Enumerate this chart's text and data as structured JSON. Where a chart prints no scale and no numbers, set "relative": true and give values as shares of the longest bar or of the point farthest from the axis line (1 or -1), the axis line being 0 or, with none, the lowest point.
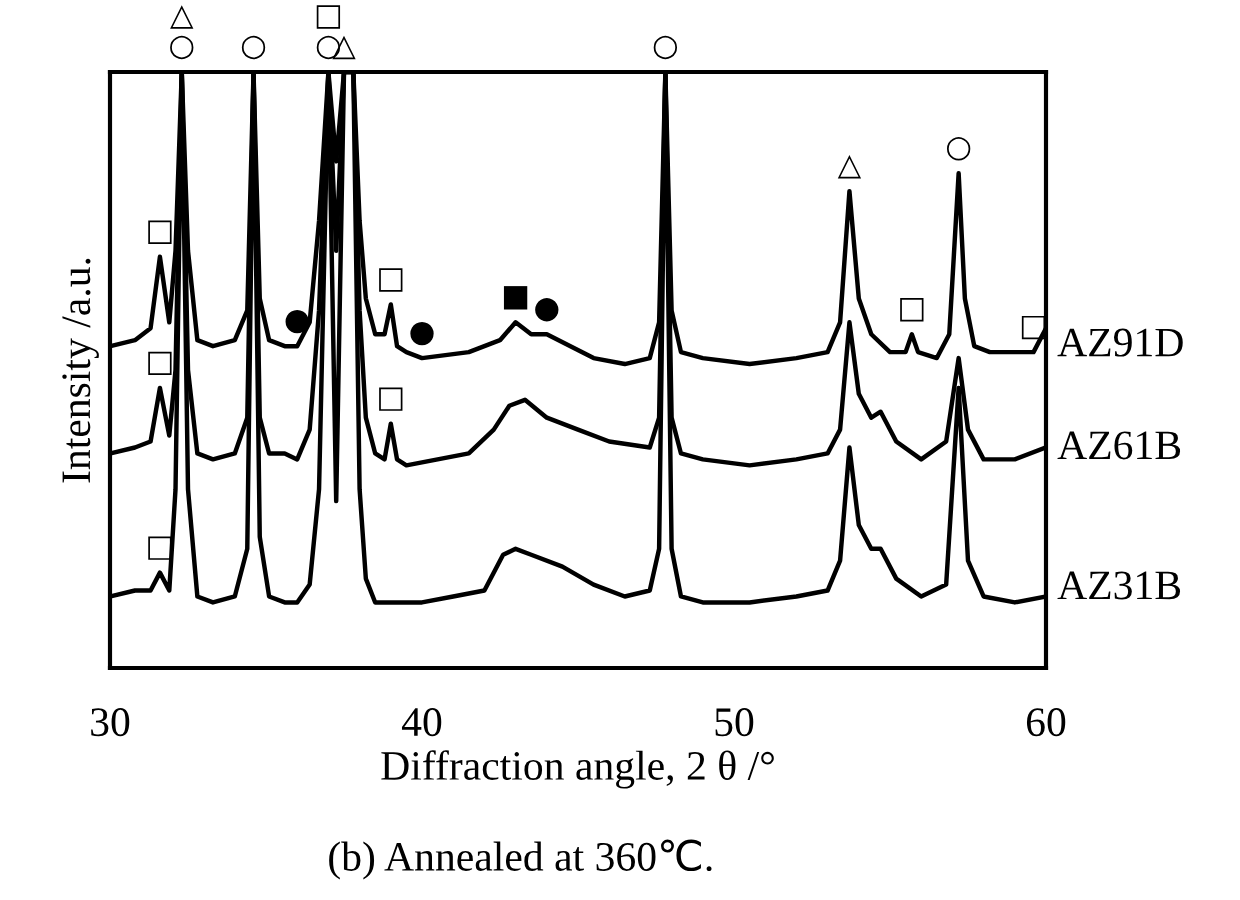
{
  "chart_data": {
    "type": "line",
    "relative": true,
    "xlabel": "Diffraction angle, 2 θ /°",
    "ylabel": "Intensity /a.u.",
    "xlim": [
      30,
      60
    ],
    "xticks": [
      30,
      40,
      50,
      60
    ],
    "grid": false,
    "legend": false,
    "marker": "none",
    "line_style": "solid",
    "series": [
      {
        "name": "AZ91D",
        "color": "#000000",
        "x": [
          30,
          30.8,
          31.3,
          31.6,
          31.9,
          32.1,
          32.3,
          32.5,
          32.8,
          33.3,
          34.0,
          34.4,
          34.6,
          34.8,
          35.1,
          35.6,
          36.0,
          36.4,
          36.7,
          37.0,
          37.25,
          37.5,
          37.8,
          38.0,
          38.2,
          38.5,
          38.8,
          39.0,
          39.2,
          39.5,
          40.0,
          41.5,
          42.5,
          43.0,
          43.5,
          44.0,
          45.5,
          46.5,
          47.3,
          47.6,
          47.8,
          48.0,
          48.3,
          49.0,
          50.5,
          52.0,
          53.0,
          53.4,
          53.7,
          54.0,
          54.4,
          55.0,
          55.5,
          55.7,
          55.9,
          56.5,
          56.9,
          57.2,
          57.4,
          57.7,
          58.2,
          59.0,
          59.6,
          60
        ],
        "values": [
          0.54,
          0.55,
          0.57,
          0.69,
          0.58,
          0.7,
          1,
          0.7,
          0.55,
          0.54,
          0.55,
          0.6,
          1,
          0.62,
          0.55,
          0.54,
          0.54,
          0.58,
          0.75,
          1,
          0.85,
          1,
          1,
          0.75,
          0.62,
          0.56,
          0.56,
          0.61,
          0.54,
          0.53,
          0.52,
          0.53,
          0.55,
          0.58,
          0.56,
          0.56,
          0.52,
          0.51,
          0.52,
          0.58,
          1,
          0.6,
          0.53,
          0.52,
          0.51,
          0.52,
          0.53,
          0.58,
          0.8,
          0.62,
          0.56,
          0.53,
          0.53,
          0.56,
          0.53,
          0.52,
          0.56,
          0.83,
          0.62,
          0.54,
          0.53,
          0.53,
          0.53,
          0.57
        ]
      },
      {
        "name": "AZ61B",
        "color": "#000000",
        "x": [
          30,
          30.8,
          31.3,
          31.6,
          31.9,
          32.1,
          32.3,
          32.5,
          32.8,
          33.3,
          34.0,
          34.4,
          34.6,
          34.8,
          35.1,
          35.6,
          36.0,
          36.4,
          36.7,
          37.0,
          37.25,
          37.5,
          37.8,
          38.0,
          38.2,
          38.5,
          38.8,
          39.0,
          39.2,
          39.5,
          40.5,
          41.5,
          42.3,
          42.8,
          43.3,
          44.0,
          45.0,
          46.0,
          47.3,
          47.6,
          47.8,
          48.0,
          48.3,
          49.0,
          50.5,
          52.0,
          53.0,
          53.4,
          53.7,
          54.0,
          54.4,
          54.7,
          55.2,
          56.0,
          56.8,
          57.2,
          57.5,
          58.0,
          59.0,
          60
        ],
        "values": [
          0.36,
          0.37,
          0.38,
          0.47,
          0.39,
          0.5,
          1,
          0.5,
          0.36,
          0.35,
          0.36,
          0.42,
          1,
          0.42,
          0.36,
          0.36,
          0.35,
          0.4,
          0.6,
          1,
          0.28,
          1,
          1,
          0.6,
          0.42,
          0.36,
          0.35,
          0.41,
          0.35,
          0.34,
          0.35,
          0.36,
          0.4,
          0.44,
          0.45,
          0.42,
          0.4,
          0.38,
          0.37,
          0.42,
          1,
          0.42,
          0.36,
          0.35,
          0.34,
          0.35,
          0.36,
          0.4,
          0.58,
          0.46,
          0.42,
          0.43,
          0.38,
          0.35,
          0.38,
          0.52,
          0.4,
          0.35,
          0.35,
          0.37
        ]
      },
      {
        "name": "AZ31B",
        "color": "#000000",
        "x": [
          30,
          30.8,
          31.3,
          31.6,
          31.9,
          32.1,
          32.3,
          32.5,
          32.8,
          33.3,
          34.0,
          34.4,
          34.6,
          34.8,
          35.1,
          35.6,
          36.0,
          36.4,
          36.7,
          37.0,
          37.25,
          37.5,
          37.8,
          38.0,
          38.2,
          38.5,
          39.0,
          40.0,
          41.0,
          42.0,
          42.6,
          43.0,
          43.5,
          44.5,
          45.5,
          46.5,
          47.3,
          47.6,
          47.8,
          48.0,
          48.3,
          49.0,
          50.5,
          52.0,
          53.0,
          53.4,
          53.7,
          54.0,
          54.4,
          54.7,
          55.2,
          56.0,
          56.8,
          57.2,
          57.5,
          58.0,
          59.0,
          60
        ],
        "values": [
          0.12,
          0.13,
          0.13,
          0.16,
          0.13,
          0.3,
          1,
          0.3,
          0.12,
          0.11,
          0.12,
          0.2,
          1,
          0.22,
          0.12,
          0.11,
          0.11,
          0.14,
          0.3,
          1,
          0.7,
          1,
          1,
          0.3,
          0.15,
          0.11,
          0.11,
          0.11,
          0.12,
          0.13,
          0.19,
          0.2,
          0.19,
          0.17,
          0.14,
          0.12,
          0.13,
          0.2,
          1,
          0.2,
          0.12,
          0.11,
          0.11,
          0.12,
          0.13,
          0.18,
          0.37,
          0.24,
          0.2,
          0.2,
          0.15,
          0.12,
          0.14,
          0.47,
          0.18,
          0.12,
          0.11,
          0.12
        ]
      }
    ],
    "annotations": [
      {
        "text": "○",
        "x": 32.3,
        "y": 1
      },
      {
        "text": "△",
        "x": 32.3,
        "y": 1
      },
      {
        "text": "○",
        "x": 34.6,
        "y": 1
      },
      {
        "text": "○",
        "x": 37.0,
        "y": 1
      },
      {
        "text": "□",
        "x": 37.0,
        "y": 1
      },
      {
        "text": "△",
        "x": 37.5,
        "y": 1
      },
      {
        "text": "○",
        "x": 47.8,
        "y": 1
      },
      {
        "text": "●",
        "x": 36.0,
        "y": 0.54
      },
      {
        "text": "●",
        "x": 40.0,
        "y": 0.52
      },
      {
        "text": "●",
        "x": 44.0,
        "y": 0.56
      },
      {
        "text": "□",
        "x": 31.6,
        "y": 0.69
      },
      {
        "text": "□",
        "x": 39.0,
        "y": 0.61
      },
      {
        "text": "■",
        "x": 43.0,
        "y": 0.58
      },
      {
        "text": "△",
        "x": 53.7,
        "y": 0.8
      },
      {
        "text": "○",
        "x": 57.2,
        "y": 0.83
      },
      {
        "text": "□",
        "x": 55.7,
        "y": 0.56
      },
      {
        "text": "□",
        "x": 59.6,
        "y": 0.53
      },
      {
        "text": "□",
        "x": 31.6,
        "y": 0.47
      },
      {
        "text": "□",
        "x": 39.0,
        "y": 0.41
      },
      {
        "text": "□",
        "x": 31.6,
        "y": 0.16
      },
      "(b) Annealed at 360℃."
    ]
  }
}
